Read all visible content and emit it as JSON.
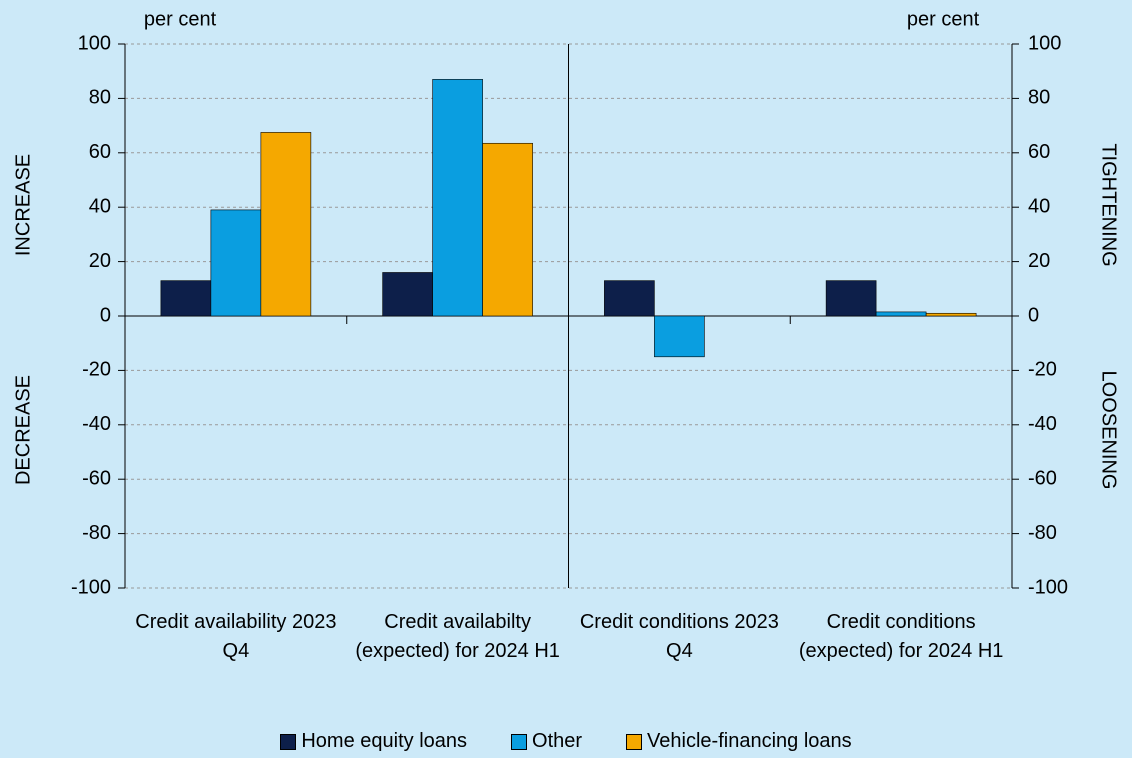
{
  "chart_data": {
    "type": "bar",
    "y_label": "per cent",
    "y2_label": "per cent",
    "annotations": [
      "INCREASE",
      "DECREASE",
      "TIGHTENING",
      "LOOSENING"
    ],
    "categories": [
      "Credit availability 2023 Q4",
      "Credit availabilty (expected) for 2024 H1",
      "Credit conditions 2023 Q4",
      "Credit conditions (expected) for 2024 H1"
    ],
    "series": [
      {
        "name": "Home equity loans",
        "color": "#0d1f4a",
        "values": [
          13,
          16,
          13,
          13
        ]
      },
      {
        "name": "Other",
        "color": "#0a9ee0",
        "values": [
          39,
          87,
          -15,
          1.5
        ]
      },
      {
        "name": "Vehicle-financing loans",
        "color": "#f5a800",
        "values": [
          67.5,
          63.5,
          0,
          1
        ]
      }
    ],
    "ylim": [
      -100,
      100
    ],
    "yticks": [
      -100,
      -80,
      -60,
      -40,
      -20,
      0,
      20,
      40,
      60,
      80,
      100
    ],
    "y2lim": [
      -100,
      100
    ],
    "y2ticks": [
      -100,
      -80,
      -60,
      -40,
      -20,
      0,
      20,
      40,
      60,
      80,
      100
    ],
    "grid": true
  }
}
